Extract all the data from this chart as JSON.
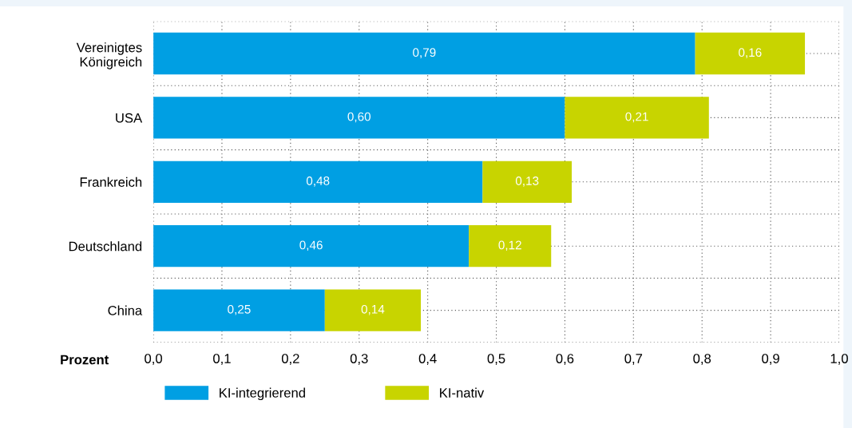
{
  "chart_data": {
    "type": "bar",
    "orientation": "horizontal",
    "stacked": true,
    "categories": [
      "Vereinigtes\nKönigreich",
      "USA",
      "Frankreich",
      "Deutschland",
      "China"
    ],
    "series": [
      {
        "name": "KI-integrierend",
        "color": "#009fe3",
        "values": [
          0.79,
          0.6,
          0.48,
          0.46,
          0.25
        ],
        "value_labels": [
          "0,79",
          "0,60",
          "0,48",
          "0,46",
          "0,25"
        ]
      },
      {
        "name": "KI-nativ",
        "color": "#c8d400",
        "values": [
          0.16,
          0.21,
          0.13,
          0.12,
          0.14
        ],
        "value_labels": [
          "0,16",
          "0,21",
          "0,13",
          "0,12",
          "0,14"
        ]
      }
    ],
    "xlabel": "Prozent",
    "xlim": [
      0,
      1.0
    ],
    "xticks": [
      {
        "value": 0,
        "label": "0,0"
      },
      {
        "value": 0.1,
        "label": "0,1"
      },
      {
        "value": 0.2,
        "label": "0,2"
      },
      {
        "value": 0.3,
        "label": "0,3"
      },
      {
        "value": 0.4,
        "label": "0,4"
      },
      {
        "value": 0.5,
        "label": "0,5"
      },
      {
        "value": 0.6,
        "label": "0,6"
      },
      {
        "value": 0.7,
        "label": "0,7"
      },
      {
        "value": 0.8,
        "label": "0,8"
      },
      {
        "value": 0.9,
        "label": "0,9"
      },
      {
        "value": 1.0,
        "label": "1,0"
      }
    ],
    "grid": true,
    "legend": "bottom left"
  }
}
